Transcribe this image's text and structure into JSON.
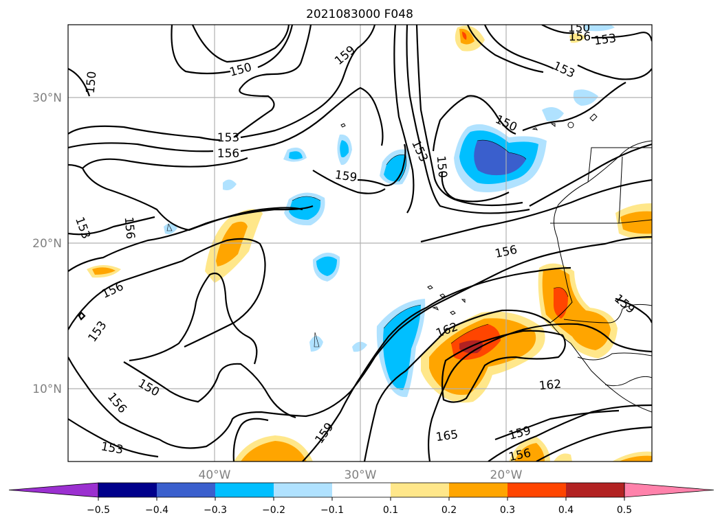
{
  "title": "2021083000 F048",
  "lat_labels": [
    "30°N",
    "20°N",
    "10°N"
  ],
  "lon_labels": [
    "40°W",
    "30°W",
    "20°W"
  ],
  "contour_labels": [
    "150",
    "150",
    "150",
    "150",
    "150",
    "150",
    "153",
    "153",
    "153",
    "153",
    "153",
    "153",
    "153",
    "156",
    "156",
    "156",
    "156",
    "156",
    "156",
    "156",
    "159",
    "159",
    "159",
    "159",
    "159",
    "162",
    "162",
    "165"
  ],
  "colorbar": {
    "ticks": [
      "−0.5",
      "−0.4",
      "−0.3",
      "−0.2",
      "−0.1",
      "0.1",
      "0.2",
      "0.3",
      "0.4",
      "0.5"
    ],
    "colors": [
      "#9b30d0",
      "#00008b",
      "#3a5fcd",
      "#00bfff",
      "#b0e2ff",
      "#ffffff",
      "#ffe78a",
      "#ffa500",
      "#ff4500",
      "#b22222",
      "#ff82ab"
    ]
  },
  "fill_colors": {
    "neg_03": "#3a5fcd",
    "neg_02": "#00bfff",
    "neg_01": "#b0e2ff",
    "pos_01": "#ffe78a",
    "pos_02": "#ffa500",
    "pos_03": "#ff4500",
    "pos_04": "#b22222"
  }
}
